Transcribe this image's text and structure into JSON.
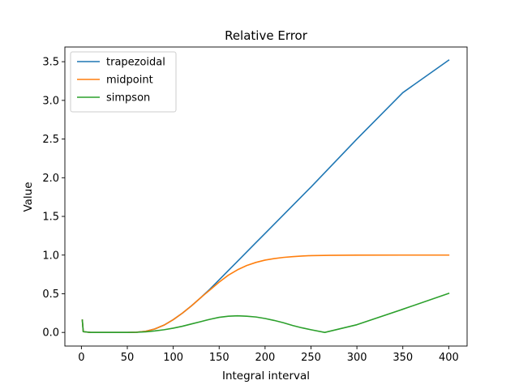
{
  "chart_data": {
    "type": "line",
    "title": "Relative Error",
    "xlabel": "Integral interval",
    "ylabel": "Value",
    "xlim": [
      -18,
      420
    ],
    "ylim": [
      -0.176,
      3.69
    ],
    "xticks": [
      0,
      50,
      100,
      150,
      200,
      250,
      300,
      350,
      400
    ],
    "yticks": [
      0.0,
      0.5,
      1.0,
      1.5,
      2.0,
      2.5,
      3.0,
      3.5
    ],
    "ytick_format": 1,
    "grid": false,
    "legend_position": "upper-left",
    "series": [
      {
        "name": "trapezoidal",
        "color": "#1f77b4",
        "points": [
          [
            1,
            0.16
          ],
          [
            2,
            0.01
          ],
          [
            10,
            0.0
          ],
          [
            50,
            0.0
          ],
          [
            60,
            0.003
          ],
          [
            70,
            0.015
          ],
          [
            80,
            0.045
          ],
          [
            90,
            0.095
          ],
          [
            100,
            0.165
          ],
          [
            110,
            0.25
          ],
          [
            120,
            0.345
          ],
          [
            130,
            0.45
          ],
          [
            140,
            0.56
          ],
          [
            150,
            0.68
          ],
          [
            160,
            0.8
          ],
          [
            170,
            0.92
          ],
          [
            180,
            1.04
          ],
          [
            190,
            1.16
          ],
          [
            200,
            1.28
          ],
          [
            250,
            1.88
          ],
          [
            300,
            2.5
          ],
          [
            350,
            3.1
          ],
          [
            400,
            3.52
          ]
        ]
      },
      {
        "name": "midpoint",
        "color": "#ff7f0e",
        "points": [
          [
            1,
            0.16
          ],
          [
            2,
            0.01
          ],
          [
            10,
            0.0
          ],
          [
            50,
            0.0
          ],
          [
            60,
            0.003
          ],
          [
            70,
            0.015
          ],
          [
            80,
            0.045
          ],
          [
            90,
            0.095
          ],
          [
            100,
            0.165
          ],
          [
            110,
            0.25
          ],
          [
            120,
            0.345
          ],
          [
            130,
            0.45
          ],
          [
            140,
            0.55
          ],
          [
            150,
            0.65
          ],
          [
            160,
            0.74
          ],
          [
            170,
            0.81
          ],
          [
            180,
            0.865
          ],
          [
            190,
            0.905
          ],
          [
            200,
            0.935
          ],
          [
            210,
            0.955
          ],
          [
            220,
            0.97
          ],
          [
            230,
            0.98
          ],
          [
            240,
            0.988
          ],
          [
            250,
            0.993
          ],
          [
            270,
            0.997
          ],
          [
            300,
            0.999
          ],
          [
            350,
            1.0
          ],
          [
            400,
            1.0
          ]
        ]
      },
      {
        "name": "simpson",
        "color": "#2ca02c",
        "points": [
          [
            1,
            0.16
          ],
          [
            2,
            0.01
          ],
          [
            10,
            0.0
          ],
          [
            50,
            0.0
          ],
          [
            60,
            0.002
          ],
          [
            70,
            0.008
          ],
          [
            80,
            0.02
          ],
          [
            90,
            0.035
          ],
          [
            100,
            0.055
          ],
          [
            110,
            0.08
          ],
          [
            120,
            0.11
          ],
          [
            130,
            0.14
          ],
          [
            140,
            0.17
          ],
          [
            150,
            0.195
          ],
          [
            160,
            0.21
          ],
          [
            170,
            0.215
          ],
          [
            180,
            0.21
          ],
          [
            190,
            0.2
          ],
          [
            200,
            0.18
          ],
          [
            210,
            0.155
          ],
          [
            220,
            0.125
          ],
          [
            230,
            0.09
          ],
          [
            240,
            0.06
          ],
          [
            250,
            0.035
          ],
          [
            265,
            0.0
          ],
          [
            300,
            0.1
          ],
          [
            350,
            0.3
          ],
          [
            400,
            0.505
          ]
        ]
      }
    ]
  }
}
